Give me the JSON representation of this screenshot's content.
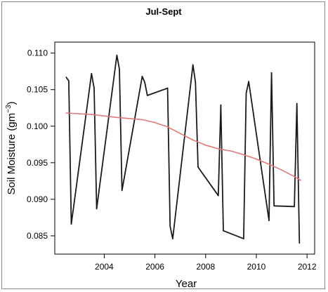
{
  "chart_data": {
    "type": "line",
    "title": "Jul-Sept",
    "xlabel": "Year",
    "ylabel_main": "Soil Moisture (gm",
    "ylabel_sup": "−3",
    "ylabel_close": ")",
    "xlim": [
      2002.05,
      2012.3
    ],
    "ylim": [
      0.0825,
      0.1115
    ],
    "x_ticks": [
      2004,
      2006,
      2008,
      2010,
      2012
    ],
    "x_tick_labels": [
      "2004",
      "2006",
      "2008",
      "2010",
      "2012"
    ],
    "y_ticks": [
      0.085,
      0.09,
      0.095,
      0.1,
      0.105,
      0.11
    ],
    "y_tick_labels": [
      "0.085",
      "0.090",
      "0.095",
      "0.100",
      "0.105",
      "0.110"
    ],
    "grid": false,
    "series": [
      {
        "color": "#1a1a1a",
        "x": [
          2002.5,
          2002.6,
          2002.7,
          2003.5,
          2003.6,
          2003.7,
          2004.5,
          2004.6,
          2004.7,
          2005.5,
          2005.6,
          2005.7,
          2006.5,
          2006.6,
          2006.7,
          2007.5,
          2007.6,
          2007.7,
          2008.5,
          2008.6,
          2008.7,
          2009.5,
          2009.6,
          2009.7,
          2010.5,
          2010.6,
          2010.7,
          2011.5,
          2011.6,
          2011.7
        ],
        "y": [
          0.1067,
          0.1062,
          0.0866,
          0.1072,
          0.1052,
          0.0887,
          0.1097,
          0.1078,
          0.0912,
          0.1068,
          0.106,
          0.1042,
          0.1052,
          0.0863,
          0.0846,
          0.1084,
          0.106,
          0.0944,
          0.0905,
          0.1029,
          0.0857,
          0.0846,
          0.1045,
          0.1061,
          0.0871,
          0.1073,
          0.0891,
          0.089,
          0.1031,
          0.084
        ]
      },
      {
        "color": "#e07a78",
        "x": [
          2002.5,
          2003.5,
          2004.5,
          2005.5,
          2006.0,
          2006.5,
          2007.0,
          2007.5,
          2008.0,
          2008.5,
          2009.0,
          2009.5,
          2010.0,
          2010.5,
          2011.0,
          2011.5,
          2011.75
        ],
        "y": [
          0.1018,
          0.1016,
          0.1012,
          0.1009,
          0.1005,
          0.0999,
          0.099,
          0.0981,
          0.0974,
          0.0969,
          0.0966,
          0.0961,
          0.0955,
          0.0948,
          0.094,
          0.0931,
          0.0926
        ]
      }
    ]
  }
}
